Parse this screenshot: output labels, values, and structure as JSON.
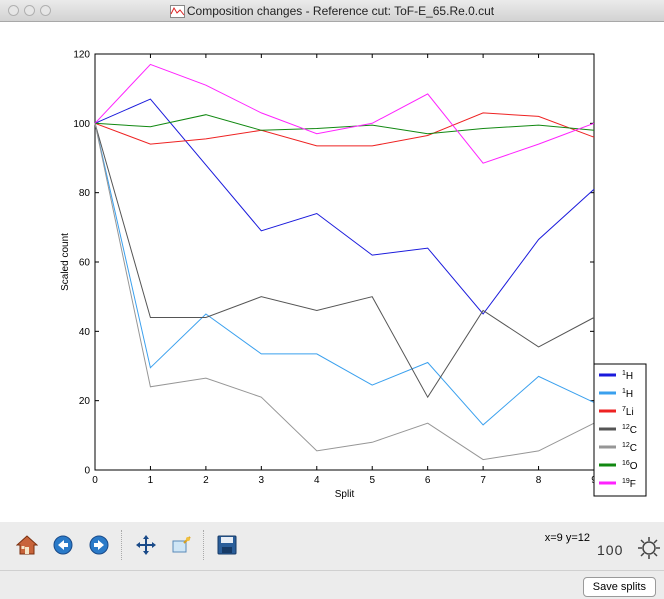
{
  "window": {
    "title": "Composition changes - Reference cut: ToF-E_65.Re.0.cut"
  },
  "chart_data": {
    "type": "line",
    "title": "",
    "xlabel": "Split",
    "ylabel": "Scaled count",
    "xlim": [
      0,
      9
    ],
    "ylim": [
      0,
      120
    ],
    "xticks": [
      0,
      1,
      2,
      3,
      4,
      5,
      6,
      7,
      8,
      9
    ],
    "yticks": [
      0,
      20,
      40,
      60,
      80,
      100,
      120
    ],
    "x": [
      0,
      1,
      2,
      3,
      4,
      5,
      6,
      7,
      8,
      9
    ],
    "legend_position": "bottom-right",
    "series": [
      {
        "name": "1H",
        "iso": "1",
        "el": "H",
        "color": "#1a1adc",
        "values": [
          100,
          107,
          88,
          69,
          74,
          62,
          64,
          45,
          66.5,
          81
        ]
      },
      {
        "name": "1H",
        "iso": "1",
        "el": "H",
        "color": "#3aa0ee",
        "values": [
          100,
          29.5,
          45,
          33.5,
          33.5,
          24.5,
          31,
          13,
          27,
          19.5
        ]
      },
      {
        "name": "7Li",
        "iso": "7",
        "el": "Li",
        "color": "#ee2222",
        "values": [
          100,
          94,
          95.5,
          98,
          93.5,
          93.5,
          96.5,
          103,
          102,
          96
        ]
      },
      {
        "name": "12C",
        "iso": "12",
        "el": "C",
        "color": "#555555",
        "values": [
          100,
          44,
          44,
          50,
          46,
          50,
          21,
          46,
          35.5,
          44
        ]
      },
      {
        "name": "12C",
        "iso": "12",
        "el": "C",
        "color": "#969696",
        "values": [
          100,
          24,
          26.5,
          21,
          5.5,
          8,
          13.5,
          3,
          5.5,
          13.5
        ]
      },
      {
        "name": "16O",
        "iso": "16",
        "el": "O",
        "color": "#118811",
        "values": [
          100,
          99,
          102.5,
          98,
          98.5,
          99.5,
          97,
          98.5,
          99.5,
          98
        ]
      },
      {
        "name": "19F",
        "iso": "19",
        "el": "F",
        "color": "#ff22ff",
        "values": [
          100,
          117,
          111,
          103,
          97,
          100,
          108.5,
          88.5,
          94,
          100
        ]
      }
    ]
  },
  "toolbar": {
    "home_icon": "home-icon",
    "back_icon": "back-arrow-icon",
    "forward_icon": "forward-arrow-icon",
    "pan_icon": "pan-move-icon",
    "zoom_rect_icon": "zoom-rectangle-icon",
    "save_icon": "save-disk-icon",
    "coords": "x=9 y=12",
    "zoom_value": "100"
  },
  "bottom": {
    "save_splits_label": "Save splits"
  }
}
